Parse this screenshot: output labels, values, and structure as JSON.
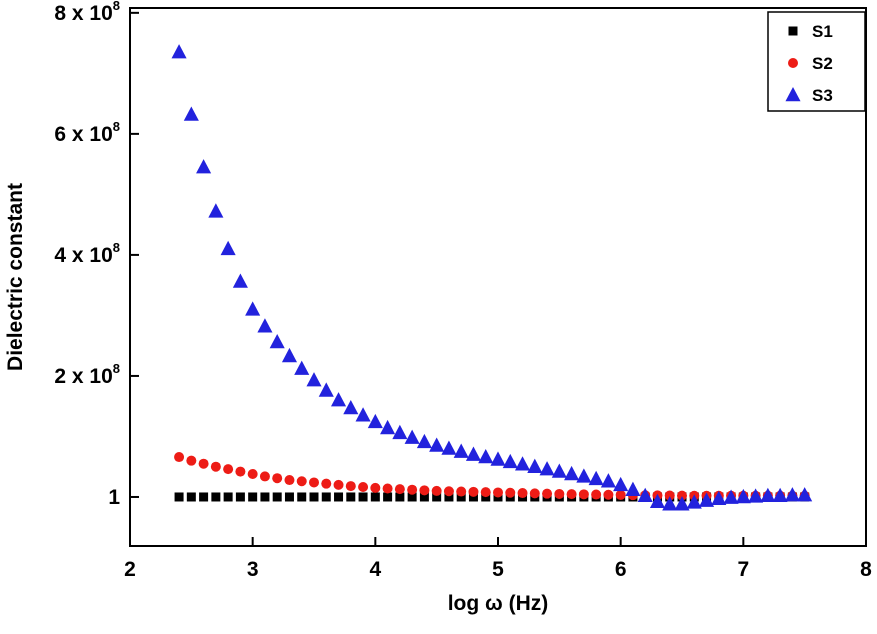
{
  "figure": {
    "background": "#ffffff"
  },
  "chart_data": {
    "type": "scatter",
    "title": "",
    "xlabel": "log ω (Hz)",
    "ylabel": "Dielectric constant",
    "xlim": [
      2,
      8
    ],
    "ylim": [
      -0.81,
      8.08
    ],
    "y_scale": 100000000,
    "y_units": "×10^8 (the tick labeled 1 marks dielectric constant = 1, i.e. ~0 at this scale)",
    "grid": false,
    "x_ticks": [
      {
        "value": 2,
        "label": "2"
      },
      {
        "value": 3,
        "label": "3"
      },
      {
        "value": 4,
        "label": "4"
      },
      {
        "value": 5,
        "label": "5"
      },
      {
        "value": 6,
        "label": "6"
      },
      {
        "value": 7,
        "label": "7"
      },
      {
        "value": 8,
        "label": "8"
      }
    ],
    "y_ticks": [
      {
        "value": 0,
        "base": "1",
        "exp": ""
      },
      {
        "value": 2,
        "base": "2 x 10",
        "exp": "8"
      },
      {
        "value": 4,
        "base": "4 x 10",
        "exp": "8"
      },
      {
        "value": 6,
        "base": "6 x 10",
        "exp": "8"
      },
      {
        "value": 8,
        "base": "8 x 10",
        "exp": "8"
      }
    ],
    "legend": {
      "position": "top-right",
      "entries": [
        {
          "name": "S1",
          "marker": "square",
          "color": "#000000"
        },
        {
          "name": "S2",
          "marker": "circle",
          "color": "#ed1c16"
        },
        {
          "name": "S3",
          "marker": "triangle",
          "color": "#2222dd"
        }
      ]
    },
    "x_start": 2.4,
    "x_step": 0.1,
    "series": [
      {
        "name": "S1",
        "marker": "square",
        "color": "#000000",
        "values": [
          0,
          0,
          0,
          0,
          0,
          0,
          0,
          0,
          0,
          0,
          0,
          0,
          0,
          0,
          0,
          0,
          0,
          0,
          0,
          0,
          0,
          0,
          0,
          0,
          0,
          0,
          0,
          0,
          0,
          0,
          0,
          0,
          0,
          0,
          0,
          0,
          0,
          0,
          0,
          0,
          0,
          0,
          0,
          0,
          0,
          0,
          0,
          0,
          0,
          0,
          0,
          0
        ]
      },
      {
        "name": "S2",
        "marker": "circle",
        "color": "#ed1c16",
        "values": [
          0.66,
          0.6,
          0.55,
          0.5,
          0.46,
          0.42,
          0.38,
          0.34,
          0.31,
          0.28,
          0.26,
          0.24,
          0.22,
          0.2,
          0.18,
          0.165,
          0.15,
          0.14,
          0.13,
          0.12,
          0.11,
          0.1,
          0.095,
          0.09,
          0.085,
          0.08,
          0.075,
          0.07,
          0.065,
          0.06,
          0.055,
          0.05,
          0.047,
          0.044,
          0.04,
          0.037,
          0.034,
          0.03,
          0.028,
          0.026,
          0.024,
          0.022,
          0.02,
          0.02,
          0.02,
          0.02,
          0.02,
          0.02,
          0.02,
          0.02,
          0.02,
          0.02
        ]
      },
      {
        "name": "S3",
        "marker": "triangle",
        "color": "#2222dd",
        "values": [
          7.35,
          6.32,
          5.45,
          4.72,
          4.1,
          3.56,
          3.1,
          2.82,
          2.56,
          2.33,
          2.12,
          1.93,
          1.76,
          1.6,
          1.47,
          1.35,
          1.24,
          1.14,
          1.06,
          0.98,
          0.91,
          0.85,
          0.8,
          0.75,
          0.7,
          0.66,
          0.62,
          0.58,
          0.54,
          0.5,
          0.46,
          0.42,
          0.38,
          0.34,
          0.3,
          0.26,
          0.2,
          0.12,
          0.02,
          -0.08,
          -0.12,
          -0.12,
          -0.09,
          -0.06,
          -0.03,
          -0.01,
          0.0,
          0.01,
          0.02,
          0.02,
          0.03,
          0.03
        ]
      }
    ]
  }
}
